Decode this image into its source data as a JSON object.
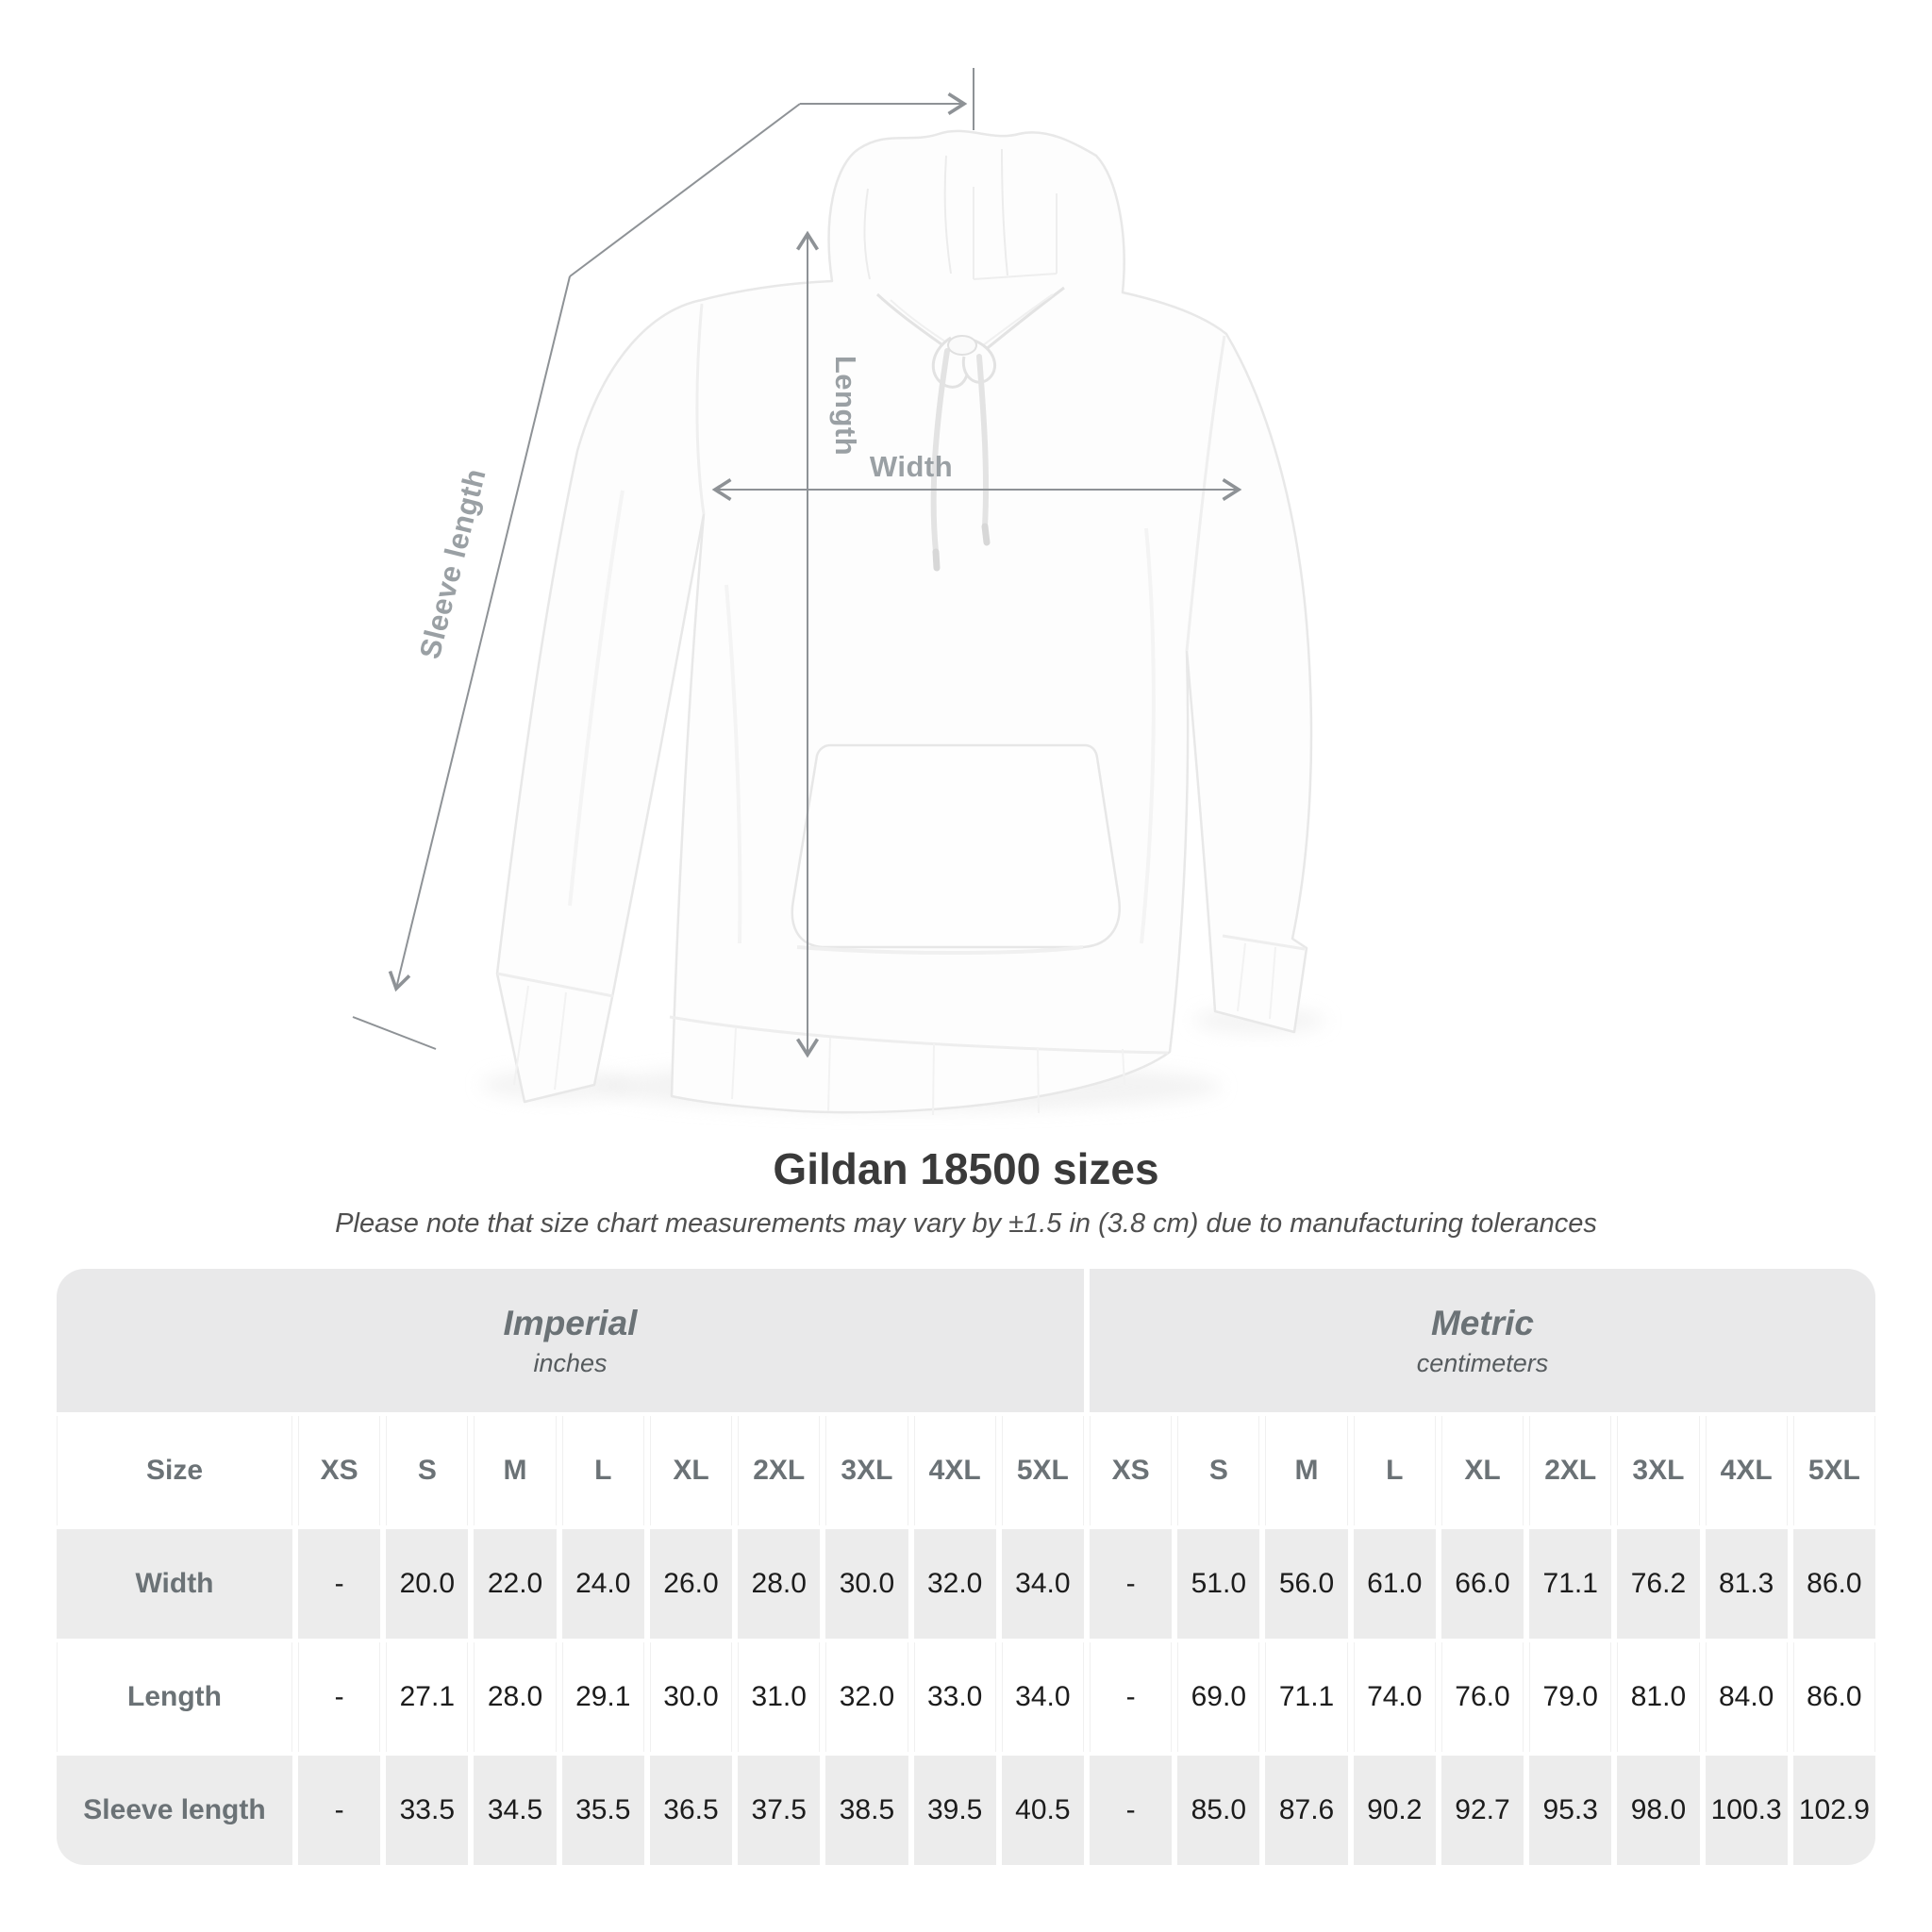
{
  "title": "Gildan 18500 sizes",
  "subtitle": "Please note that size chart measurements may vary by ±1.5 in (3.8 cm) due to manufacturing tolerances",
  "figure": {
    "length_label": "Length",
    "width_label": "Width",
    "sleeve_label": "Sleeve length",
    "line_color": "#8e9296",
    "label_color": "#9aa0a4"
  },
  "colors": {
    "band_bg": "#e9e9ea",
    "row_gray": "#ececec",
    "header_text": "#6b7276",
    "value_text": "#1c1c1c",
    "title_text": "#3a3a3a"
  },
  "chart_data": {
    "type": "table",
    "title": "Gildan 18500 sizes",
    "note": "Please note that size chart measurements may vary by ±1.5 in (3.8 cm) due to manufacturing tolerances",
    "corner_label": "Size",
    "sections": [
      {
        "name": "Imperial",
        "unit": "inches"
      },
      {
        "name": "Metric",
        "unit": "centimeters"
      }
    ],
    "sizes": [
      "XS",
      "S",
      "M",
      "L",
      "XL",
      "2XL",
      "3XL",
      "4XL",
      "5XL"
    ],
    "rows": [
      {
        "label": "Width",
        "imperial": [
          "-",
          "20.0",
          "22.0",
          "24.0",
          "26.0",
          "28.0",
          "30.0",
          "32.0",
          "34.0"
        ],
        "metric": [
          "-",
          "51.0",
          "56.0",
          "61.0",
          "66.0",
          "71.1",
          "76.2",
          "81.3",
          "86.0"
        ]
      },
      {
        "label": "Length",
        "imperial": [
          "-",
          "27.1",
          "28.0",
          "29.1",
          "30.0",
          "31.0",
          "32.0",
          "33.0",
          "34.0"
        ],
        "metric": [
          "-",
          "69.0",
          "71.1",
          "74.0",
          "76.0",
          "79.0",
          "81.0",
          "84.0",
          "86.0"
        ]
      },
      {
        "label": "Sleeve length",
        "imperial": [
          "-",
          "33.5",
          "34.5",
          "35.5",
          "36.5",
          "37.5",
          "38.5",
          "39.5",
          "40.5"
        ],
        "metric": [
          "-",
          "85.0",
          "87.6",
          "90.2",
          "92.7",
          "95.3",
          "98.0",
          "100.3",
          "102.9"
        ]
      }
    ]
  }
}
